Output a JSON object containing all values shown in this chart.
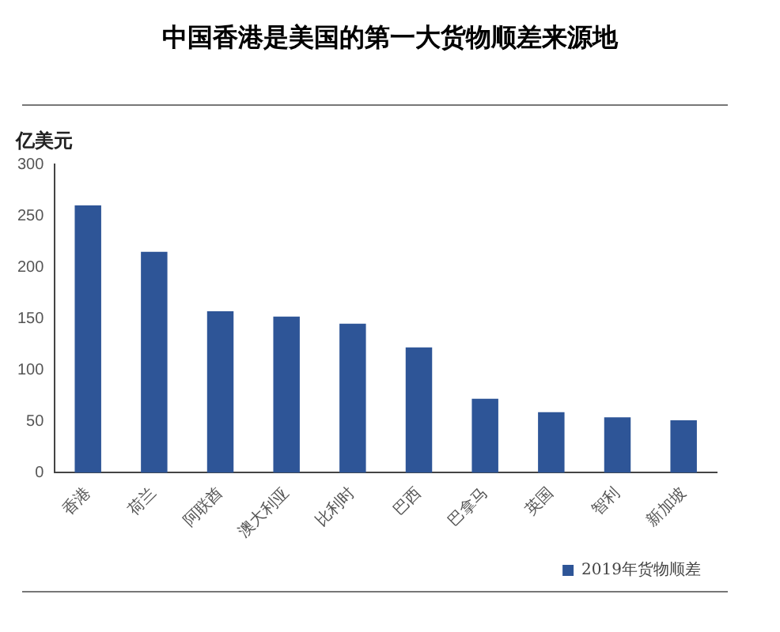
{
  "chart_data": {
    "type": "bar",
    "title": "中国香港是美国的第一大货物顺差来源地",
    "ylabel": "亿美元",
    "categories": [
      "香港",
      "荷兰",
      "阿联酋",
      "澳大利亚",
      "比利时",
      "巴西",
      "巴拿马",
      "英国",
      "智利",
      "新加坡"
    ],
    "series": [
      {
        "name": "2019年货物顺差",
        "color": "#2e5597",
        "values": [
          260,
          215,
          157,
          152,
          145,
          122,
          72,
          59,
          54,
          51
        ]
      }
    ],
    "ylim": [
      0,
      300
    ],
    "yticks": [
      0,
      50,
      100,
      150,
      200,
      250,
      300
    ],
    "grid": false,
    "legend": "bottom right"
  }
}
